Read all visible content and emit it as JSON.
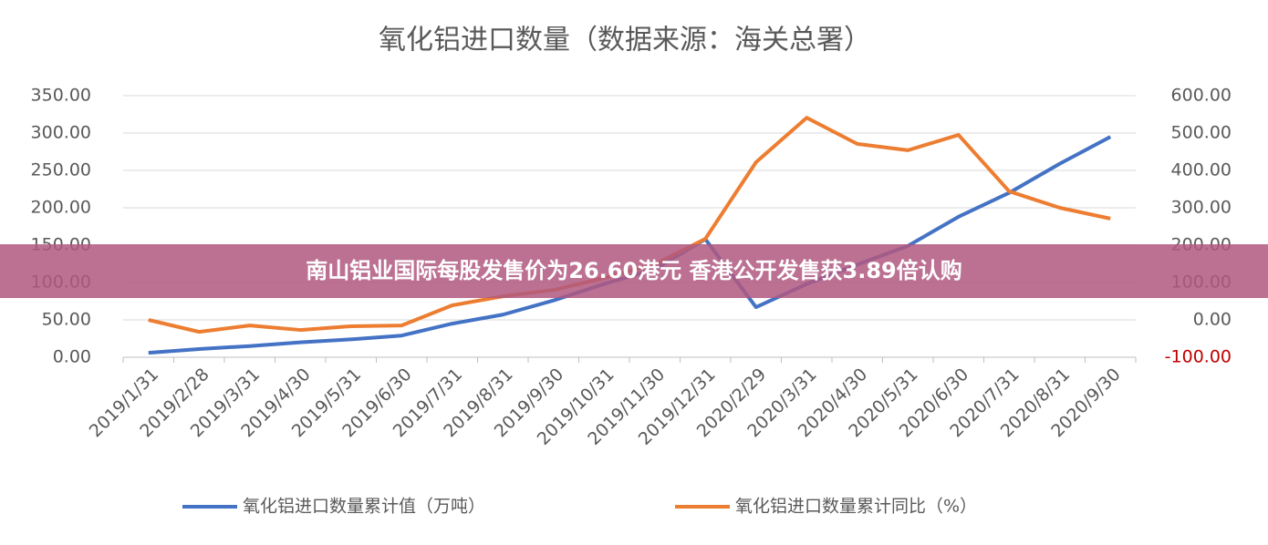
{
  "chart_data": {
    "type": "line",
    "title": "氧化铝进口数量（数据来源：海关总署）",
    "banner": "南山铝业国际每股发售价为26.60港元 香港公开发售获3.89倍认购",
    "categories": [
      "2019/1/31",
      "2019/2/28",
      "2019/3/31",
      "2019/4/30",
      "2019/5/31",
      "2019/6/30",
      "2019/7/31",
      "2019/8/31",
      "2019/9/30",
      "2019/10/31",
      "2019/11/30",
      "2019/12/31",
      "2020/2/29",
      "2020/3/31",
      "2020/4/30",
      "2020/5/31",
      "2020/6/30",
      "2020/7/31",
      "2020/8/31",
      "2020/9/30"
    ],
    "series": [
      {
        "name": "氧化铝进口数量累计值（万吨）",
        "color": "#4472c4",
        "values": [
          6,
          11,
          15,
          20,
          24,
          29,
          45,
          57,
          76,
          98,
          118,
          158,
          67,
          98,
          124,
          149,
          188,
          220,
          259,
          295
        ]
      },
      {
        "name": "氧化铝进口数量累计同比（%）",
        "color": "#ed7d31",
        "axis": "y2",
        "values": [
          0,
          -32,
          -15,
          -27,
          -17,
          -15,
          39,
          63,
          80,
          112,
          149,
          217,
          422,
          541,
          471,
          454,
          495,
          344,
          300,
          271
        ]
      }
    ],
    "ylim": [
      0,
      350
    ],
    "yticks": [
      {
        "value": 0,
        "label": "0.00"
      },
      {
        "value": 50,
        "label": "50.00"
      },
      {
        "value": 100,
        "label": "100.00"
      },
      {
        "value": 150,
        "label": "150.00"
      },
      {
        "value": 200,
        "label": "200.00"
      },
      {
        "value": 250,
        "label": "250.00"
      },
      {
        "value": 300,
        "label": "300.00"
      },
      {
        "value": 350,
        "label": "350.00"
      }
    ],
    "y2lim": [
      -100,
      600
    ],
    "y2ticks": [
      {
        "value": -100,
        "label": "-100.00"
      },
      {
        "value": 0,
        "label": "0.00"
      },
      {
        "value": 100,
        "label": "100.00"
      },
      {
        "value": 200,
        "label": "200.00"
      },
      {
        "value": 300,
        "label": "300.00"
      },
      {
        "value": 400,
        "label": "400.00"
      },
      {
        "value": 500,
        "label": "500.00"
      },
      {
        "value": 600,
        "label": "600.00"
      }
    ],
    "negative_tick_color": "#c00000",
    "grid": true,
    "legend": "bottom"
  }
}
